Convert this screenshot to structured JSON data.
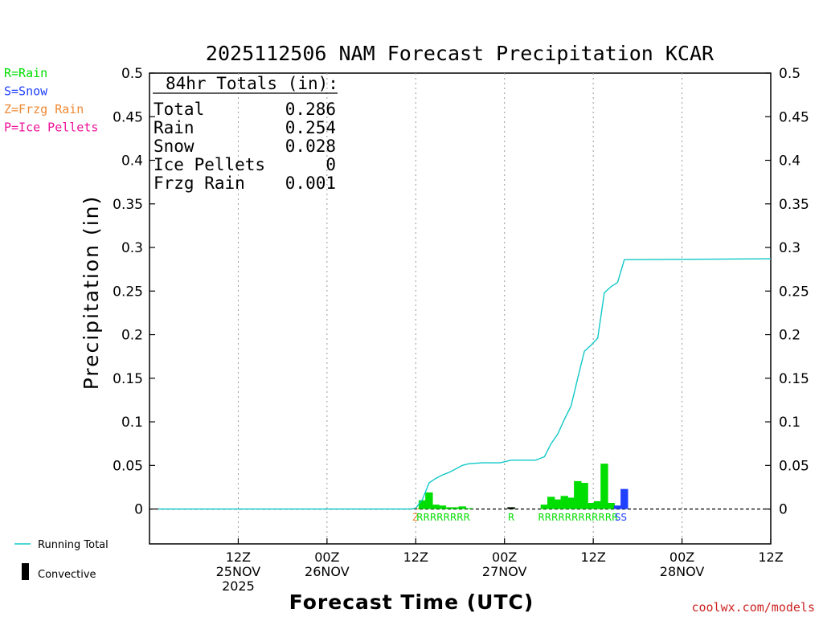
{
  "title": "2025112506 NAM Forecast Precipitation KCAR",
  "colors": {
    "rain": "#00dd00",
    "snow": "#2040ff",
    "frzg_rain": "#ee8833",
    "ice_pellets": "#ee1199",
    "running_total": "#11c8c8",
    "convective": "#000000",
    "credit": "#cc2222"
  },
  "type_legend": [
    {
      "label": "R=Rain",
      "color_key": "rain"
    },
    {
      "label": "S=Snow",
      "color_key": "snow"
    },
    {
      "label": "Z=Frzg Rain",
      "color_key": "frzg_rain"
    },
    {
      "label": "P=Ice Pellets",
      "color_key": "ice_pellets"
    }
  ],
  "totals": {
    "header": "84hr Totals (in):",
    "rows": [
      {
        "label": "Total",
        "value": "0.286"
      },
      {
        "label": "Rain",
        "value": "0.254"
      },
      {
        "label": "Snow",
        "value": "0.028"
      },
      {
        "label": "Ice Pellets",
        "value": "0"
      },
      {
        "label": "Frzg Rain",
        "value": "0.001"
      }
    ]
  },
  "bottom_legend": {
    "running_total": "Running Total",
    "convective": "Convective"
  },
  "credit": "coolwx.com/models",
  "chart_data": {
    "type": "bar",
    "title": "2025112506 NAM Forecast Precipitation KCAR",
    "xlabel": "Forecast Time (UTC)",
    "ylabel": "Precipitation (in)",
    "xlim_hours": [
      -5,
      65
    ],
    "ylim": [
      -0.04,
      0.5
    ],
    "yticks": [
      0,
      0.05,
      0.1,
      0.15,
      0.2,
      0.25,
      0.3,
      0.35,
      0.4,
      0.45,
      0.5
    ],
    "ytick_labels": [
      "0",
      "0.05",
      "0.1",
      "0.15",
      "0.2",
      "0.25",
      "0.3",
      "0.35",
      "0.4",
      "0.45",
      "0.5"
    ],
    "xticks": [
      {
        "hour": 5,
        "lines": [
          "12Z",
          "25NOV",
          "2025"
        ]
      },
      {
        "hour": 15,
        "lines": [
          "00Z",
          "26NOV"
        ]
      },
      {
        "hour": 25,
        "lines": [
          "12Z"
        ]
      },
      {
        "hour": 35,
        "lines": [
          "00Z",
          "27NOV"
        ]
      },
      {
        "hour": 45,
        "lines": [
          "12Z"
        ]
      },
      {
        "hour": 55,
        "lines": [
          "00Z",
          "28NOV"
        ]
      },
      {
        "hour": 65,
        "lines": [
          "12Z"
        ]
      }
    ],
    "bar_width_hours": 0.85,
    "bars": [
      {
        "hour": 25.0,
        "value": 0.001,
        "type": "Z"
      },
      {
        "hour": 25.75,
        "value": 0.01,
        "type": "R"
      },
      {
        "hour": 26.5,
        "value": 0.019,
        "type": "R"
      },
      {
        "hour": 27.25,
        "value": 0.005,
        "type": "R"
      },
      {
        "hour": 28.0,
        "value": 0.004,
        "type": "R"
      },
      {
        "hour": 28.75,
        "value": 0.002,
        "type": "R"
      },
      {
        "hour": 29.5,
        "value": 0.002,
        "type": "R"
      },
      {
        "hour": 30.25,
        "value": 0.003,
        "type": "R"
      },
      {
        "hour": 31.0,
        "value": 0.001,
        "type": "R"
      },
      {
        "hour": 35.75,
        "value": 0.002,
        "type": "R"
      },
      {
        "hour": 39.5,
        "value": 0.005,
        "type": "R"
      },
      {
        "hour": 40.25,
        "value": 0.014,
        "type": "R"
      },
      {
        "hour": 41.0,
        "value": 0.011,
        "type": "R"
      },
      {
        "hour": 41.75,
        "value": 0.015,
        "type": "R"
      },
      {
        "hour": 42.5,
        "value": 0.013,
        "type": "R"
      },
      {
        "hour": 43.25,
        "value": 0.032,
        "type": "R"
      },
      {
        "hour": 44.0,
        "value": 0.03,
        "type": "R"
      },
      {
        "hour": 44.75,
        "value": 0.007,
        "type": "R"
      },
      {
        "hour": 45.5,
        "value": 0.009,
        "type": "R"
      },
      {
        "hour": 46.25,
        "value": 0.052,
        "type": "R"
      },
      {
        "hour": 47.0,
        "value": 0.007,
        "type": "R"
      },
      {
        "hour": 47.75,
        "value": 0.004,
        "type": "S"
      },
      {
        "hour": 48.5,
        "value": 0.023,
        "type": "S"
      }
    ],
    "convective_bars": [
      {
        "hour": 35.75,
        "value": 0.002
      }
    ],
    "type_marker_groups": [
      {
        "hour": 25.0,
        "text": "Z",
        "type": "Z"
      },
      {
        "hour": 28.1,
        "text": "RRRRRRRR",
        "type": "R"
      },
      {
        "hour": 35.75,
        "text": "R",
        "type": "R"
      },
      {
        "hour": 43.3,
        "text": "RRRRRRRRRRRR",
        "type": "R"
      },
      {
        "hour": 48.1,
        "text": "SS",
        "type": "S"
      }
    ],
    "running_total": {
      "name": "Running Total",
      "hours": [
        -4,
        24.5,
        25.0,
        25.75,
        26.5,
        27.25,
        28.0,
        28.75,
        29.5,
        30.25,
        31.0,
        32.5,
        34.5,
        35.75,
        37.0,
        38.5,
        39.5,
        40.25,
        41.0,
        41.75,
        42.5,
        43.25,
        44.0,
        44.75,
        45.5,
        46.25,
        47.0,
        47.75,
        48.5,
        65
      ],
      "values": [
        0,
        0,
        0.001,
        0.011,
        0.03,
        0.035,
        0.039,
        0.042,
        0.046,
        0.05,
        0.052,
        0.053,
        0.053,
        0.056,
        0.056,
        0.056,
        0.06,
        0.075,
        0.086,
        0.103,
        0.118,
        0.15,
        0.181,
        0.188,
        0.196,
        0.248,
        0.255,
        0.26,
        0.286,
        0.287
      ]
    }
  }
}
